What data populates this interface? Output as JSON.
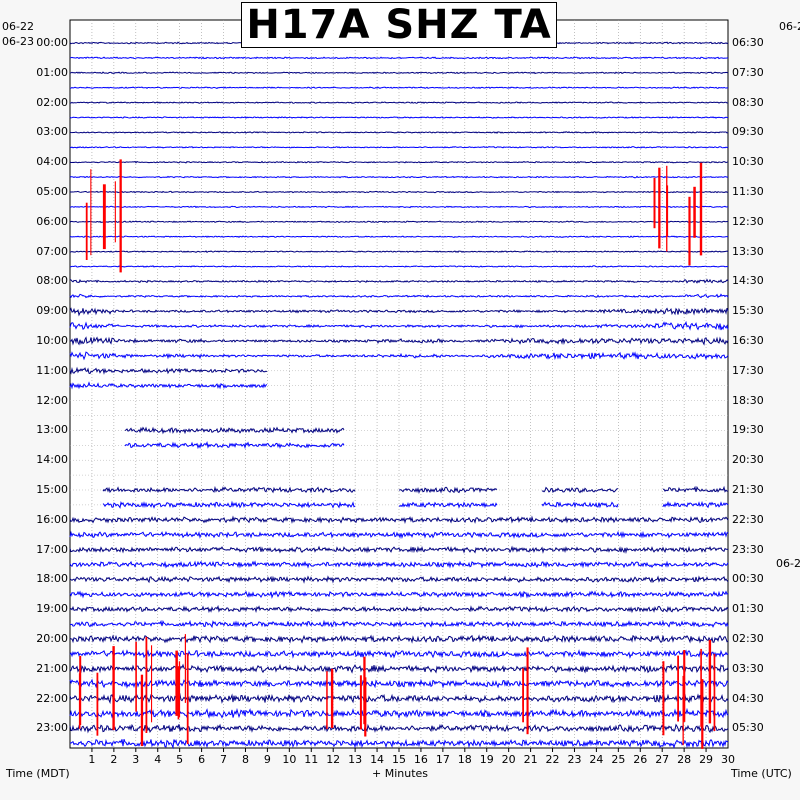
{
  "chart_data": {
    "type": "helicorder",
    "title": "H17A SHZ TA",
    "left_dates": [
      "06-22",
      "06-23"
    ],
    "right_dates": [
      "06-2",
      "06-2"
    ],
    "left_hours": [
      "00:00",
      "01:00",
      "02:00",
      "03:00",
      "04:00",
      "05:00",
      "06:00",
      "07:00",
      "08:00",
      "09:00",
      "10:00",
      "11:00",
      "12:00",
      "13:00",
      "14:00",
      "15:00",
      "16:00",
      "17:00",
      "18:00",
      "19:00",
      "20:00",
      "21:00",
      "22:00",
      "23:00"
    ],
    "right_hours": [
      "06:30",
      "07:30",
      "08:30",
      "09:30",
      "10:30",
      "11:30",
      "12:30",
      "13:30",
      "14:30",
      "15:30",
      "16:30",
      "17:30",
      "18:30",
      "19:30",
      "20:30",
      "21:30",
      "22:30",
      "23:30",
      "00:30",
      "01:30",
      "02:30",
      "03:30",
      "04:30",
      "05:30"
    ],
    "x_ticks": [
      "1",
      "2",
      "3",
      "4",
      "5",
      "6",
      "7",
      "8",
      "9",
      "10",
      "11",
      "12",
      "13",
      "14",
      "15",
      "16",
      "17",
      "18",
      "19",
      "20",
      "21",
      "22",
      "23",
      "24",
      "25",
      "26",
      "27",
      "28",
      "29",
      "30"
    ],
    "xlabel": "+ Minutes",
    "left_axis_label": "Time (MDT)",
    "right_axis_label": "Time (UTC)",
    "xlim": [
      0,
      30
    ],
    "minutes_per_line": 30,
    "trace_colors": [
      "#000080",
      "#0000ff"
    ],
    "clip_color": "#ff0000",
    "grid": true,
    "trace_activity": [
      [
        0.6,
        0.6,
        0.6,
        0.6,
        0.6,
        0.6,
        0.6,
        0.6,
        0.6,
        0.6,
        0.6,
        0.6,
        0.6,
        0.6,
        0.6,
        0.6,
        0.6,
        0.6,
        0.6,
        0.6,
        0.6,
        0.6,
        0.6,
        0.6,
        0.6,
        0.6,
        0.6,
        0.6,
        0.6,
        0.6
      ],
      [
        0.5,
        0.5,
        0.5,
        0.5,
        0.5,
        0.5,
        0.5,
        0.5,
        0.5,
        0.5,
        0.5,
        0.5,
        0.5,
        0.5,
        0.5,
        0.5,
        0.5,
        0.5,
        0.5,
        0.5,
        0.5,
        0.5,
        0.5,
        0.5,
        0.5,
        0.5,
        0.5,
        0.5,
        0.5,
        0.5
      ],
      [
        0.5,
        0.5,
        0.5,
        0.5,
        0.5,
        0.5,
        0.5,
        0.5,
        0.5,
        0.5,
        0.5,
        0.5,
        0.5,
        0.5,
        0.5,
        0.5,
        0.5,
        0.5,
        0.5,
        0.5,
        0.5,
        0.5,
        0.5,
        0.5,
        0.5,
        0.5,
        0.5,
        0.5,
        0.5,
        0.5
      ],
      [
        0.5,
        0.5,
        0.5,
        0.5,
        0.5,
        0.5,
        0.5,
        0.5,
        0.5,
        0.5,
        0.5,
        0.5,
        0.5,
        0.5,
        0.5,
        0.5,
        0.5,
        0.5,
        0.5,
        0.5,
        0.5,
        0.5,
        0.5,
        0.5,
        0.5,
        0.5,
        0.5,
        0.5,
        0.5,
        0.5
      ],
      [
        0.5,
        0.5,
        0.5,
        0.5,
        0.5,
        0.5,
        0.5,
        0.5,
        0.5,
        0.5,
        0.5,
        0.5,
        0.5,
        0.5,
        0.5,
        0.5,
        0.5,
        0.5,
        0.5,
        0.5,
        0.5,
        0.5,
        0.5,
        0.5,
        0.5,
        0.5,
        0.5,
        0.5,
        0.5,
        0.5
      ],
      [
        0.5,
        0.5,
        0.5,
        0.5,
        0.5,
        0.5,
        0.5,
        0.5,
        0.5,
        0.5,
        0.5,
        0.5,
        0.5,
        0.5,
        0.5,
        0.5,
        0.5,
        0.5,
        0.5,
        0.5,
        0.5,
        0.5,
        0.5,
        0.5,
        0.5,
        0.5,
        0.5,
        0.5,
        0.5,
        0.5
      ],
      [
        0.5,
        0.5,
        0.5,
        0.5,
        0.5,
        0.5,
        0.5,
        0.5,
        0.5,
        0.5,
        0.5,
        0.5,
        0.5,
        0.5,
        0.5,
        0.5,
        0.5,
        0.5,
        0.5,
        0.5,
        0.5,
        0.5,
        0.5,
        0.5,
        0.5,
        0.5,
        0.5,
        0.5,
        0.5,
        0.5
      ],
      [
        0.5,
        0.5,
        0.5,
        0.5,
        0.5,
        0.5,
        0.5,
        0.5,
        0.5,
        0.5,
        0.5,
        0.5,
        0.5,
        0.5,
        0.5,
        0.5,
        0.5,
        0.5,
        0.5,
        0.5,
        0.5,
        0.5,
        0.5,
        0.5,
        0.5,
        0.5,
        0.5,
        0.5,
        0.5,
        0.5
      ],
      [
        1.5,
        0.7,
        0.7,
        0.7,
        0.7,
        0.7,
        0.7,
        0.7,
        0.7,
        0.7,
        0.7,
        0.7,
        0.7,
        0.7,
        0.7,
        0.7,
        0.7,
        0.7,
        0.7,
        0.7,
        0.7,
        0.7,
        0.7,
        0.7,
        0.7,
        0.7,
        0.7,
        0.7,
        1.5,
        1.5
      ],
      [
        3.0,
        2.0,
        1.0,
        1.0,
        1.0,
        1.0,
        1.0,
        1.0,
        1.0,
        1.0,
        1.0,
        1.0,
        1.0,
        1.0,
        1.0,
        1.0,
        1.0,
        1.0,
        1.0,
        1.0,
        1.0,
        1.0,
        1.0,
        1.0,
        1.5,
        1.5,
        2.0,
        3.0,
        3.0,
        3.0
      ],
      [
        3.0,
        2.5,
        1.5,
        1.0,
        1.5,
        1.5,
        1.0,
        1.0,
        1.0,
        1.0,
        1.0,
        1.0,
        1.0,
        1.0,
        1.5,
        1.5,
        1.5,
        1.0,
        1.0,
        1.5,
        2.0,
        2.0,
        2.5,
        2.5,
        2.5,
        2.5,
        2.5,
        2.5,
        2.5,
        2.5
      ],
      [
        2.5,
        2.0,
        1.5,
        1.5,
        1.5,
        1.5,
        1.5,
        1.5,
        1.5,
        1.5,
        1.5,
        1.5,
        1.5,
        1.5,
        1.5,
        1.5,
        1.5,
        1.5,
        1.5,
        1.5,
        2.0,
        2.0,
        2.0,
        2.0,
        2.0,
        2.0,
        2.0,
        2.0,
        2.0,
        2.0
      ],
      [
        1.5,
        1.5,
        1.5,
        1.5,
        1.5,
        1.5,
        1.5,
        1.5,
        1.5,
        1.5,
        1.5,
        1.5,
        1.5,
        1.5,
        1.5,
        1.5,
        1.5,
        1.5,
        1.5,
        1.5,
        2.0,
        2.0,
        1.5,
        1.5,
        1.5,
        1.5,
        1.5,
        1.5,
        1.5,
        1.5
      ],
      [
        2.0,
        2.0,
        2.0,
        2.0,
        2.0,
        2.0,
        2.0,
        2.0,
        2.0,
        2.0,
        2.0,
        2.0,
        2.0,
        2.0,
        2.0,
        2.0,
        2.0,
        2.0,
        2.0,
        2.0,
        2.0,
        2.0,
        2.0,
        2.0,
        2.0,
        2.0,
        2.0,
        2.0,
        2.0,
        2.0
      ],
      [
        2.0,
        2.0,
        2.5,
        2.5,
        2.5,
        2.5,
        2.0,
        2.0,
        2.0,
        2.0,
        2.0,
        2.0,
        2.0,
        2.0,
        2.0,
        2.0,
        2.0,
        2.0,
        2.5,
        2.5,
        2.5,
        2.5,
        2.5,
        2.0,
        2.0,
        2.0,
        2.0,
        2.5,
        2.5,
        2.0
      ],
      [
        2.0,
        2.0,
        2.0,
        2.0,
        2.0,
        2.0,
        2.0,
        2.0,
        2.0,
        2.0,
        2.0,
        2.0,
        2.0,
        2.0,
        2.0,
        2.0,
        2.0,
        2.0,
        2.0,
        2.0,
        2.0,
        2.0,
        2.0,
        2.0,
        2.0,
        2.0,
        2.0,
        2.0,
        2.0,
        2.0
      ],
      [
        2.0,
        2.0,
        2.0,
        2.0,
        2.0,
        2.0,
        2.0,
        2.0,
        2.0,
        2.0,
        2.0,
        2.0,
        2.0,
        2.0,
        2.0,
        2.0,
        2.0,
        2.0,
        2.0,
        2.0,
        2.0,
        2.0,
        2.0,
        2.0,
        2.0,
        2.0,
        2.0,
        2.0,
        2.0,
        2.0
      ],
      [
        2.0,
        2.0,
        2.0,
        2.0,
        2.0,
        2.0,
        2.0,
        2.0,
        2.0,
        2.0,
        2.0,
        2.0,
        2.0,
        2.0,
        2.0,
        2.0,
        2.0,
        2.0,
        2.0,
        2.0,
        2.0,
        2.0,
        2.0,
        2.0,
        2.0,
        2.0,
        2.0,
        2.0,
        2.0,
        2.0
      ],
      [
        2.0,
        2.0,
        2.0,
        2.0,
        2.0,
        2.0,
        2.0,
        2.0,
        2.0,
        2.0,
        2.0,
        2.0,
        2.0,
        2.0,
        2.0,
        2.0,
        2.0,
        2.0,
        2.0,
        2.0,
        2.0,
        2.0,
        2.0,
        2.0,
        2.0,
        2.0,
        2.0,
        2.0,
        2.0,
        2.0
      ],
      [
        2.0,
        2.0,
        2.0,
        2.0,
        2.0,
        2.0,
        2.0,
        2.0,
        2.0,
        2.0,
        2.0,
        2.0,
        2.0,
        2.0,
        2.0,
        2.0,
        2.0,
        2.0,
        2.0,
        2.0,
        2.0,
        2.0,
        2.0,
        2.0,
        2.0,
        2.0,
        2.0,
        2.0,
        2.0,
        2.0
      ],
      [
        2.5,
        2.5,
        2.5,
        2.5,
        2.5,
        2.5,
        2.5,
        2.5,
        2.5,
        2.5,
        2.5,
        2.5,
        2.5,
        2.5,
        2.5,
        2.5,
        2.5,
        2.5,
        2.5,
        2.5,
        2.5,
        2.5,
        2.5,
        2.5,
        2.5,
        2.5,
        2.5,
        2.5,
        2.5,
        2.5
      ],
      [
        3.0,
        3.0,
        2.5,
        2.5,
        2.5,
        3.0,
        2.5,
        2.5,
        2.5,
        2.5,
        2.5,
        2.5,
        3.0,
        3.0,
        2.5,
        2.5,
        2.5,
        2.5,
        2.5,
        2.5,
        2.5,
        2.5,
        2.5,
        2.5,
        2.5,
        2.5,
        3.0,
        3.0,
        3.0,
        3.0
      ],
      [
        3.0,
        3.0,
        3.0,
        3.0,
        3.0,
        3.0,
        3.0,
        3.0,
        3.0,
        3.0,
        3.0,
        3.0,
        3.0,
        3.0,
        3.0,
        3.0,
        2.5,
        2.5,
        2.5,
        2.5,
        2.5,
        2.5,
        2.5,
        2.5,
        2.5,
        2.5,
        3.0,
        3.0,
        3.0,
        3.0
      ],
      [
        3.0,
        3.0,
        3.0,
        3.0,
        3.0,
        3.0,
        2.5,
        2.5,
        2.5,
        2.5,
        2.5,
        2.5,
        3.0,
        3.0,
        2.5,
        2.5,
        2.5,
        2.5,
        2.5,
        2.5,
        2.5,
        2.5,
        2.5,
        2.5,
        2.5,
        2.5,
        3.0,
        3.0,
        3.0,
        3.0
      ]
    ],
    "quiet_segments": [
      {
        "hour": "11:00",
        "from": 9,
        "to": 30
      },
      {
        "hour": "12:00",
        "from": 0,
        "to": 30
      },
      {
        "hour": "13:00",
        "from": 0,
        "to": 2.5
      },
      {
        "hour": "13:00",
        "from": 12.5,
        "to": 30
      },
      {
        "hour": "14:00",
        "from": 0,
        "to": 30
      },
      {
        "hour": "15:00",
        "from": 0,
        "to": 1.5
      },
      {
        "hour": "15:00",
        "from": 13,
        "to": 15
      },
      {
        "hour": "15:00",
        "from": 19.5,
        "to": 21.5
      },
      {
        "hour": "15:00",
        "from": 25,
        "to": 27
      }
    ],
    "clipped_events": [
      {
        "hour": "04:00",
        "from": 0.3,
        "to": 2.3,
        "lines": 4
      },
      {
        "hour": "04:00",
        "from": 26.5,
        "to": 29.3,
        "lines": 4
      },
      {
        "hour": "20:00",
        "from": 0.3,
        "to": 5.5,
        "lines": 4
      },
      {
        "hour": "20:00",
        "from": 11.3,
        "to": 13.5,
        "lines": 4
      },
      {
        "hour": "20:00",
        "from": 20.5,
        "to": 20.9,
        "lines": 4
      },
      {
        "hour": "20:00",
        "from": 26.4,
        "to": 29.5,
        "lines": 4
      }
    ]
  }
}
